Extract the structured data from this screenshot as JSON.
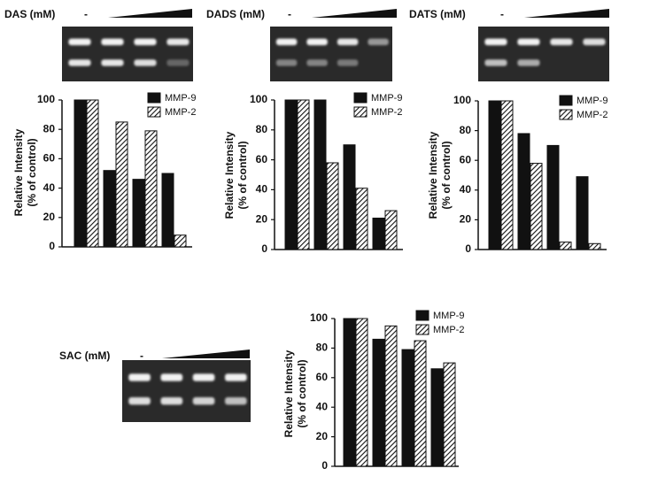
{
  "chart_data": [
    {
      "type": "bar",
      "gel_label": "DAS (mM)",
      "control_label": "-",
      "ylabel": "Relative Intensity",
      "ylabel2": "(% of control)",
      "categories": [
        null,
        null,
        null,
        null
      ],
      "series": [
        {
          "name": "MMP-9",
          "color": "#111111",
          "style": "solid",
          "values": [
            100,
            52,
            46,
            50
          ]
        },
        {
          "name": "MMP-2",
          "color": "#111111",
          "style": "hatched",
          "values": [
            100,
            85,
            79,
            8
          ]
        }
      ],
      "ylim": [
        0,
        100
      ],
      "yticks": [
        0,
        20,
        40,
        60,
        80,
        100
      ]
    },
    {
      "type": "bar",
      "gel_label": "DADS (mM)",
      "control_label": "-",
      "ylabel": "Relative Intensity",
      "ylabel2": "(% of control)",
      "categories": [
        null,
        null,
        null,
        null
      ],
      "series": [
        {
          "name": "MMP-9",
          "color": "#111111",
          "style": "solid",
          "values": [
            100,
            100,
            70,
            21
          ]
        },
        {
          "name": "MMP-2",
          "color": "#111111",
          "style": "hatched",
          "values": [
            100,
            58,
            41,
            26
          ]
        }
      ],
      "ylim": [
        0,
        100
      ],
      "yticks": [
        0,
        20,
        40,
        60,
        80,
        100
      ]
    },
    {
      "type": "bar",
      "gel_label": "DATS (mM)",
      "control_label": "-",
      "ylabel": "Relative Intensity",
      "ylabel2": "(% of control)",
      "categories": [
        null,
        null,
        null,
        null
      ],
      "series": [
        {
          "name": "MMP-9",
          "color": "#111111",
          "style": "solid",
          "values": [
            100,
            78,
            70,
            49
          ]
        },
        {
          "name": "MMP-2",
          "color": "#111111",
          "style": "hatched",
          "values": [
            100,
            58,
            5,
            4
          ]
        }
      ],
      "ylim": [
        0,
        100
      ],
      "yticks": [
        0,
        20,
        40,
        60,
        80,
        100
      ]
    },
    {
      "type": "bar",
      "gel_label": "SAC (mM)",
      "control_label": "-",
      "ylabel": "Relative Intensity",
      "ylabel2": "(% of control)",
      "categories": [
        null,
        null,
        null,
        null
      ],
      "series": [
        {
          "name": "MMP-9",
          "color": "#111111",
          "style": "solid",
          "values": [
            100,
            86,
            79,
            66
          ]
        },
        {
          "name": "MMP-2",
          "color": "#111111",
          "style": "hatched",
          "values": [
            100,
            95,
            85,
            70
          ]
        }
      ],
      "ylim": [
        0,
        100
      ],
      "yticks": [
        0,
        20,
        40,
        60,
        80,
        100
      ]
    }
  ]
}
